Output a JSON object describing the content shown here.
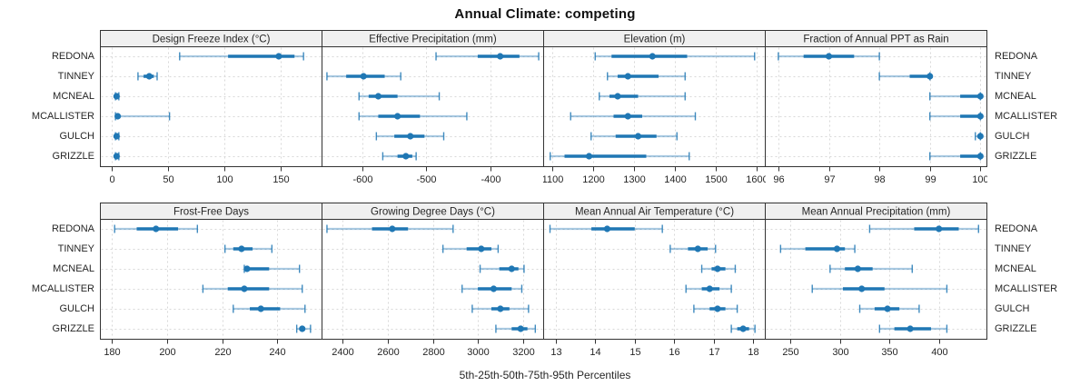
{
  "title": "Annual Climate: competing",
  "footer": "5th-25th-50th-75th-95th Percentiles",
  "stations": [
    "REDONA",
    "TINNEY",
    "MCNEAL",
    "MCALLISTER",
    "GULCH",
    "GRIZZLE"
  ],
  "colors": {
    "marker_blue": "#1f77b4",
    "strip_fill": "#f0f0f0",
    "panel_border": "#333333",
    "gridline": "#d8d8d8",
    "text": "#262626"
  },
  "chart_data": [
    {
      "type": "scatter",
      "subtype": "percentile-dot-whisker",
      "title": "Design Freeze Index (°C)",
      "row": 0,
      "col": 0,
      "xlim": [
        -10,
        186
      ],
      "ticks": [
        0,
        50,
        100,
        150
      ],
      "percentile_labels": [
        "p5",
        "p25",
        "p50",
        "p75",
        "p95"
      ],
      "series": [
        {
          "name": "REDONA",
          "values": [
            60,
            103,
            148,
            162,
            170
          ]
        },
        {
          "name": "TINNEY",
          "values": [
            23,
            28,
            33,
            37,
            40
          ]
        },
        {
          "name": "MCNEAL",
          "values": [
            3,
            3,
            4,
            5,
            6
          ]
        },
        {
          "name": "MCALLISTER",
          "values": [
            3,
            4,
            5,
            7,
            51
          ]
        },
        {
          "name": "GULCH",
          "values": [
            3,
            3,
            4,
            5,
            6
          ]
        },
        {
          "name": "GRIZZLE",
          "values": [
            3,
            3,
            4,
            5,
            6
          ]
        }
      ]
    },
    {
      "type": "scatter",
      "subtype": "percentile-dot-whisker",
      "title": "Effective Precipitation (mm)",
      "row": 0,
      "col": 1,
      "xlim": [
        -662,
        -318
      ],
      "ticks": [
        -600,
        -500,
        -400
      ],
      "percentile_labels": [
        "p5",
        "p25",
        "p50",
        "p75",
        "p95"
      ],
      "series": [
        {
          "name": "REDONA",
          "values": [
            -485,
            -420,
            -385,
            -355,
            -325
          ]
        },
        {
          "name": "TINNEY",
          "values": [
            -655,
            -625,
            -598,
            -565,
            -540
          ]
        },
        {
          "name": "MCNEAL",
          "values": [
            -605,
            -590,
            -575,
            -545,
            -480
          ]
        },
        {
          "name": "MCALLISTER",
          "values": [
            -605,
            -575,
            -545,
            -510,
            -437
          ]
        },
        {
          "name": "GULCH",
          "values": [
            -578,
            -550,
            -525,
            -503,
            -473
          ]
        },
        {
          "name": "GRIZZLE",
          "values": [
            -568,
            -545,
            -532,
            -522,
            -516
          ]
        }
      ]
    },
    {
      "type": "scatter",
      "subtype": "percentile-dot-whisker",
      "title": "Elevation (m)",
      "row": 0,
      "col": 2,
      "xlim": [
        1080,
        1620
      ],
      "ticks": [
        1100,
        1200,
        1300,
        1400,
        1500,
        1600
      ],
      "percentile_labels": [
        "p5",
        "p25",
        "p50",
        "p75",
        "p95"
      ],
      "series": [
        {
          "name": "REDONA",
          "values": [
            1205,
            1245,
            1345,
            1430,
            1595
          ]
        },
        {
          "name": "TINNEY",
          "values": [
            1235,
            1260,
            1285,
            1360,
            1425
          ]
        },
        {
          "name": "MCNEAL",
          "values": [
            1215,
            1240,
            1260,
            1310,
            1425
          ]
        },
        {
          "name": "MCALLISTER",
          "values": [
            1145,
            1250,
            1285,
            1320,
            1450
          ]
        },
        {
          "name": "GULCH",
          "values": [
            1195,
            1255,
            1310,
            1355,
            1405
          ]
        },
        {
          "name": "GRIZZLE",
          "values": [
            1095,
            1130,
            1190,
            1330,
            1435
          ]
        }
      ]
    },
    {
      "type": "scatter",
      "subtype": "percentile-dot-whisker",
      "title": "Fraction of Annual PPT as Rain",
      "row": 0,
      "col": 3,
      "xlim": [
        95.75,
        100.12
      ],
      "ticks": [
        96,
        97,
        98,
        99,
        100
      ],
      "percentile_labels": [
        "p5",
        "p25",
        "p50",
        "p75",
        "p95"
      ],
      "series": [
        {
          "name": "REDONA",
          "values": [
            96,
            96.5,
            97,
            97.5,
            98
          ]
        },
        {
          "name": "TINNEY",
          "values": [
            98,
            98.6,
            99,
            99,
            99
          ]
        },
        {
          "name": "MCNEAL",
          "values": [
            99,
            99.6,
            100,
            100,
            100
          ]
        },
        {
          "name": "MCALLISTER",
          "values": [
            99,
            99.6,
            100,
            100,
            100
          ]
        },
        {
          "name": "GULCH",
          "values": [
            99.9,
            100,
            100,
            100,
            100
          ]
        },
        {
          "name": "GRIZZLE",
          "values": [
            99,
            99.6,
            100,
            100,
            100
          ]
        }
      ]
    },
    {
      "type": "scatter",
      "subtype": "percentile-dot-whisker",
      "title": "Frost-Free Days",
      "row": 1,
      "col": 0,
      "xlim": [
        176,
        256
      ],
      "ticks": [
        180,
        200,
        220,
        240
      ],
      "percentile_labels": [
        "p5",
        "p25",
        "p50",
        "p75",
        "p95"
      ],
      "series": [
        {
          "name": "REDONA",
          "values": [
            181,
            189,
            196,
            204,
            211
          ]
        },
        {
          "name": "TINNEY",
          "values": [
            221,
            224,
            227,
            231,
            238
          ]
        },
        {
          "name": "MCNEAL",
          "values": [
            228,
            228,
            229,
            237,
            248
          ]
        },
        {
          "name": "MCALLISTER",
          "values": [
            213,
            222,
            228,
            237,
            249
          ]
        },
        {
          "name": "GULCH",
          "values": [
            224,
            230,
            234,
            241,
            250
          ]
        },
        {
          "name": "GRIZZLE",
          "values": [
            247,
            248,
            249,
            250,
            252
          ]
        }
      ]
    },
    {
      "type": "scatter",
      "subtype": "percentile-dot-whisker",
      "title": "Growing Degree Days (°C)",
      "row": 1,
      "col": 1,
      "xlim": [
        2310,
        3290
      ],
      "ticks": [
        2400,
        2600,
        2800,
        3000,
        3200
      ],
      "percentile_labels": [
        "p5",
        "p25",
        "p50",
        "p75",
        "p95"
      ],
      "series": [
        {
          "name": "REDONA",
          "values": [
            2330,
            2530,
            2620,
            2690,
            2890
          ]
        },
        {
          "name": "TINNEY",
          "values": [
            2845,
            2950,
            3015,
            3060,
            3090
          ]
        },
        {
          "name": "MCNEAL",
          "values": [
            3010,
            3095,
            3150,
            3180,
            3205
          ]
        },
        {
          "name": "MCALLISTER",
          "values": [
            2930,
            3000,
            3070,
            3150,
            3195
          ]
        },
        {
          "name": "GULCH",
          "values": [
            2975,
            3060,
            3100,
            3140,
            3225
          ]
        },
        {
          "name": "GRIZZLE",
          "values": [
            3080,
            3150,
            3190,
            3220,
            3255
          ]
        }
      ]
    },
    {
      "type": "scatter",
      "subtype": "percentile-dot-whisker",
      "title": "Mean Annual Air Temperature (°C)",
      "row": 1,
      "col": 2,
      "xlim": [
        12.7,
        18.3
      ],
      "ticks": [
        13,
        14,
        15,
        16,
        17,
        18
      ],
      "percentile_labels": [
        "p5",
        "p25",
        "p50",
        "p75",
        "p95"
      ],
      "series": [
        {
          "name": "REDONA",
          "values": [
            12.85,
            13.9,
            14.3,
            15.0,
            15.7
          ]
        },
        {
          "name": "TINNEY",
          "values": [
            15.9,
            16.35,
            16.6,
            16.85,
            17.05
          ]
        },
        {
          "name": "MCNEAL",
          "values": [
            16.7,
            16.95,
            17.1,
            17.3,
            17.55
          ]
        },
        {
          "name": "MCALLISTER",
          "values": [
            16.3,
            16.7,
            16.9,
            17.15,
            17.45
          ]
        },
        {
          "name": "GULCH",
          "values": [
            16.5,
            16.9,
            17.1,
            17.3,
            17.6
          ]
        },
        {
          "name": "GRIZZLE",
          "values": [
            17.45,
            17.6,
            17.75,
            17.9,
            18.05
          ]
        }
      ]
    },
    {
      "type": "scatter",
      "subtype": "percentile-dot-whisker",
      "title": "Mean Annual Precipitation (mm)",
      "row": 1,
      "col": 3,
      "xlim": [
        225,
        448
      ],
      "ticks": [
        250,
        300,
        350,
        400
      ],
      "percentile_labels": [
        "p5",
        "p25",
        "p50",
        "p75",
        "p95"
      ],
      "series": [
        {
          "name": "REDONA",
          "values": [
            330,
            375,
            400,
            420,
            440
          ]
        },
        {
          "name": "TINNEY",
          "values": [
            240,
            265,
            297,
            305,
            315
          ]
        },
        {
          "name": "MCNEAL",
          "values": [
            290,
            305,
            318,
            333,
            373
          ]
        },
        {
          "name": "MCALLISTER",
          "values": [
            272,
            303,
            322,
            345,
            408
          ]
        },
        {
          "name": "GULCH",
          "values": [
            320,
            335,
            348,
            360,
            380
          ]
        },
        {
          "name": "GRIZZLE",
          "values": [
            340,
            355,
            371,
            392,
            408
          ]
        }
      ]
    }
  ]
}
